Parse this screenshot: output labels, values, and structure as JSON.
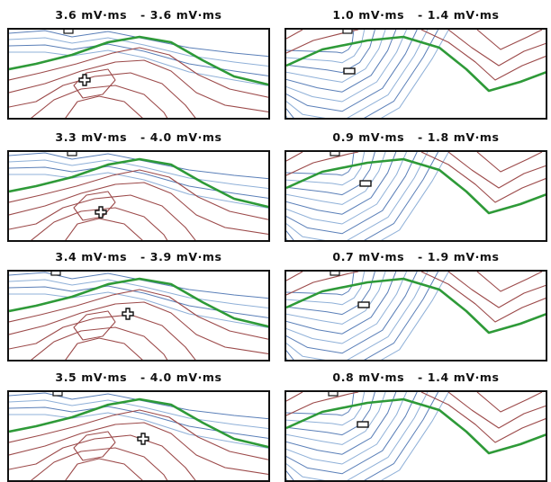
{
  "panels": [
    {
      "label": "3.6 mV·ms   - 3.6 mV·ms"
    },
    {
      "label": "1.0 mV·ms   - 1.4 mV·ms"
    },
    {
      "label": "3.3 mV·ms   - 4.0 mV·ms"
    },
    {
      "label": "0.9 mV·ms   - 1.8 mV·ms"
    },
    {
      "label": "3.4 mV·ms   - 3.9 mV·ms"
    },
    {
      "label": "0.7 mV·ms   - 1.9 mV·ms"
    },
    {
      "label": "3.5 mV·ms   - 4.0 mV·ms"
    },
    {
      "label": "0.8 mV·ms   - 1.4 mV·ms"
    }
  ],
  "colors": {
    "positive_contour": "#9c4a4a",
    "zero_contour": "#2e9a38",
    "negative_contour": "#5a7fb8",
    "negative_contour_light": "#8fb0d8",
    "frame": "#111111"
  }
}
